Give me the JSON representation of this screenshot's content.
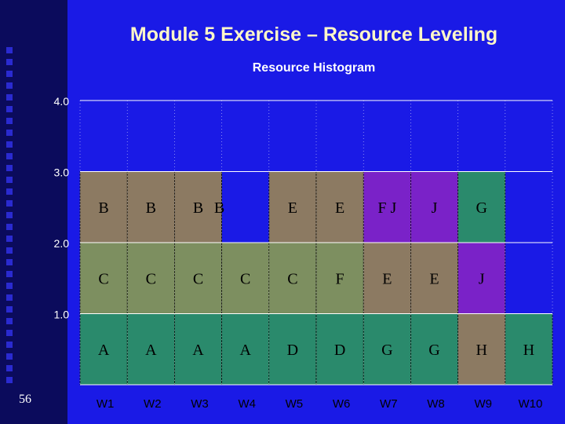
{
  "slide": {
    "title": "Module 5 Exercise – Resource Leveling",
    "page_number": "56"
  },
  "colors": {
    "background": "#1a1ae6",
    "left_band": "#0b0b5c",
    "plot_bg": "#1a1ae6",
    "grid": "#ffffff",
    "block_outline": "#000000"
  },
  "chart_data": {
    "type": "bar",
    "title": "Resource Histogram",
    "categories": [
      "W1",
      "W2",
      "W3",
      "W4",
      "W5",
      "W6",
      "W7",
      "W8",
      "W9",
      "W10"
    ],
    "ylim": [
      0,
      4
    ],
    "yticks": [
      "1.0",
      "2.0",
      "3.0",
      "4.0"
    ],
    "grid": true,
    "stacks": [
      [
        {
          "label": "A",
          "color": "#2a8a6c"
        },
        {
          "label": "C",
          "color": "#7d8f60"
        },
        {
          "label": "B",
          "color": "#8c7a62"
        }
      ],
      [
        {
          "label": "A",
          "color": "#2a8a6c"
        },
        {
          "label": "C",
          "color": "#7d8f60"
        },
        {
          "label": "B",
          "color": "#8c7a62"
        }
      ],
      [
        {
          "label": "A",
          "color": "#2a8a6c"
        },
        {
          "label": "C",
          "color": "#7d8f60"
        },
        {
          "label": "B",
          "color": "#8c7a62"
        }
      ],
      [
        {
          "label": "A",
          "color": "#2a8a6c"
        },
        {
          "label": "C",
          "color": "#7d8f60"
        },
        {
          "label": "B",
          "color": "#8c7a62"
        }
      ],
      [
        {
          "label": "D",
          "color": "#2a8a6c"
        },
        {
          "label": "C",
          "color": "#7d8f60"
        },
        {
          "label": "E",
          "color": "#8c7a62"
        }
      ],
      [
        {
          "label": "D",
          "color": "#2a8a6c"
        },
        {
          "label": "F",
          "color": "#7d8f60"
        },
        {
          "label": "E",
          "color": "#8c7a62"
        }
      ],
      [
        {
          "label": "G",
          "color": "#2a8a6c"
        },
        {
          "label": "E",
          "color": "#8c7a62"
        },
        {
          "label": "F J",
          "color": "#7a22c8"
        }
      ],
      [
        {
          "label": "G",
          "color": "#2a8a6c"
        },
        {
          "label": "E",
          "color": "#8c7a62"
        },
        {
          "label": "J",
          "color": "#7a22c8"
        }
      ],
      [
        {
          "label": "H",
          "color": "#8c7a62"
        },
        {
          "label": "J",
          "color": "#7a22c8"
        },
        {
          "label": "G",
          "color": "#2a8a6c"
        }
      ],
      [
        {
          "label": "H",
          "color": "#2a8a6c"
        }
      ]
    ],
    "overlays": [
      {
        "category_start": 3,
        "category_end": 3,
        "level": 2,
        "label": "B",
        "color": "#1a1ae6"
      }
    ]
  }
}
